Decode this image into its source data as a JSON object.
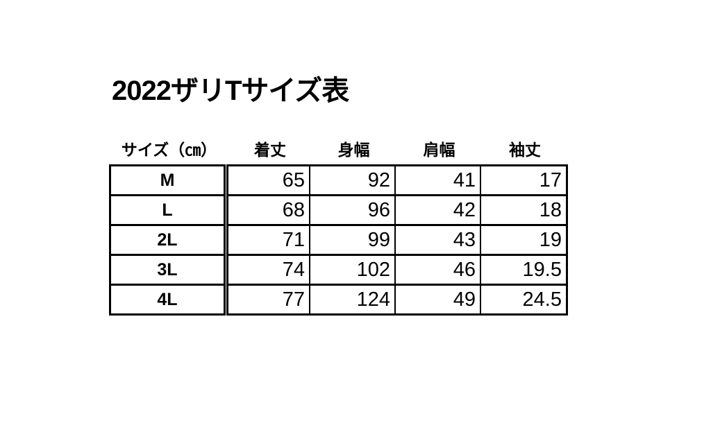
{
  "page": {
    "background_color": "#ffffff",
    "text_color": "#000000",
    "border_color": "#000000"
  },
  "title": "2022ザリTサイズ表",
  "size_chart": {
    "header": {
      "size_label": "サイズ（㎝）",
      "columns": [
        "着丈",
        "身幅",
        "肩幅",
        "袖丈"
      ]
    },
    "rows": [
      {
        "size": "M",
        "values": [
          "65",
          "92",
          "41",
          "17"
        ]
      },
      {
        "size": "L",
        "values": [
          "68",
          "96",
          "42",
          "18"
        ]
      },
      {
        "size": "2L",
        "values": [
          "71",
          "99",
          "43",
          "19"
        ]
      },
      {
        "size": "3L",
        "values": [
          "74",
          "102",
          "46",
          "19.5"
        ]
      },
      {
        "size": "4L",
        "values": [
          "77",
          "124",
          "49",
          "24.5"
        ]
      }
    ]
  }
}
